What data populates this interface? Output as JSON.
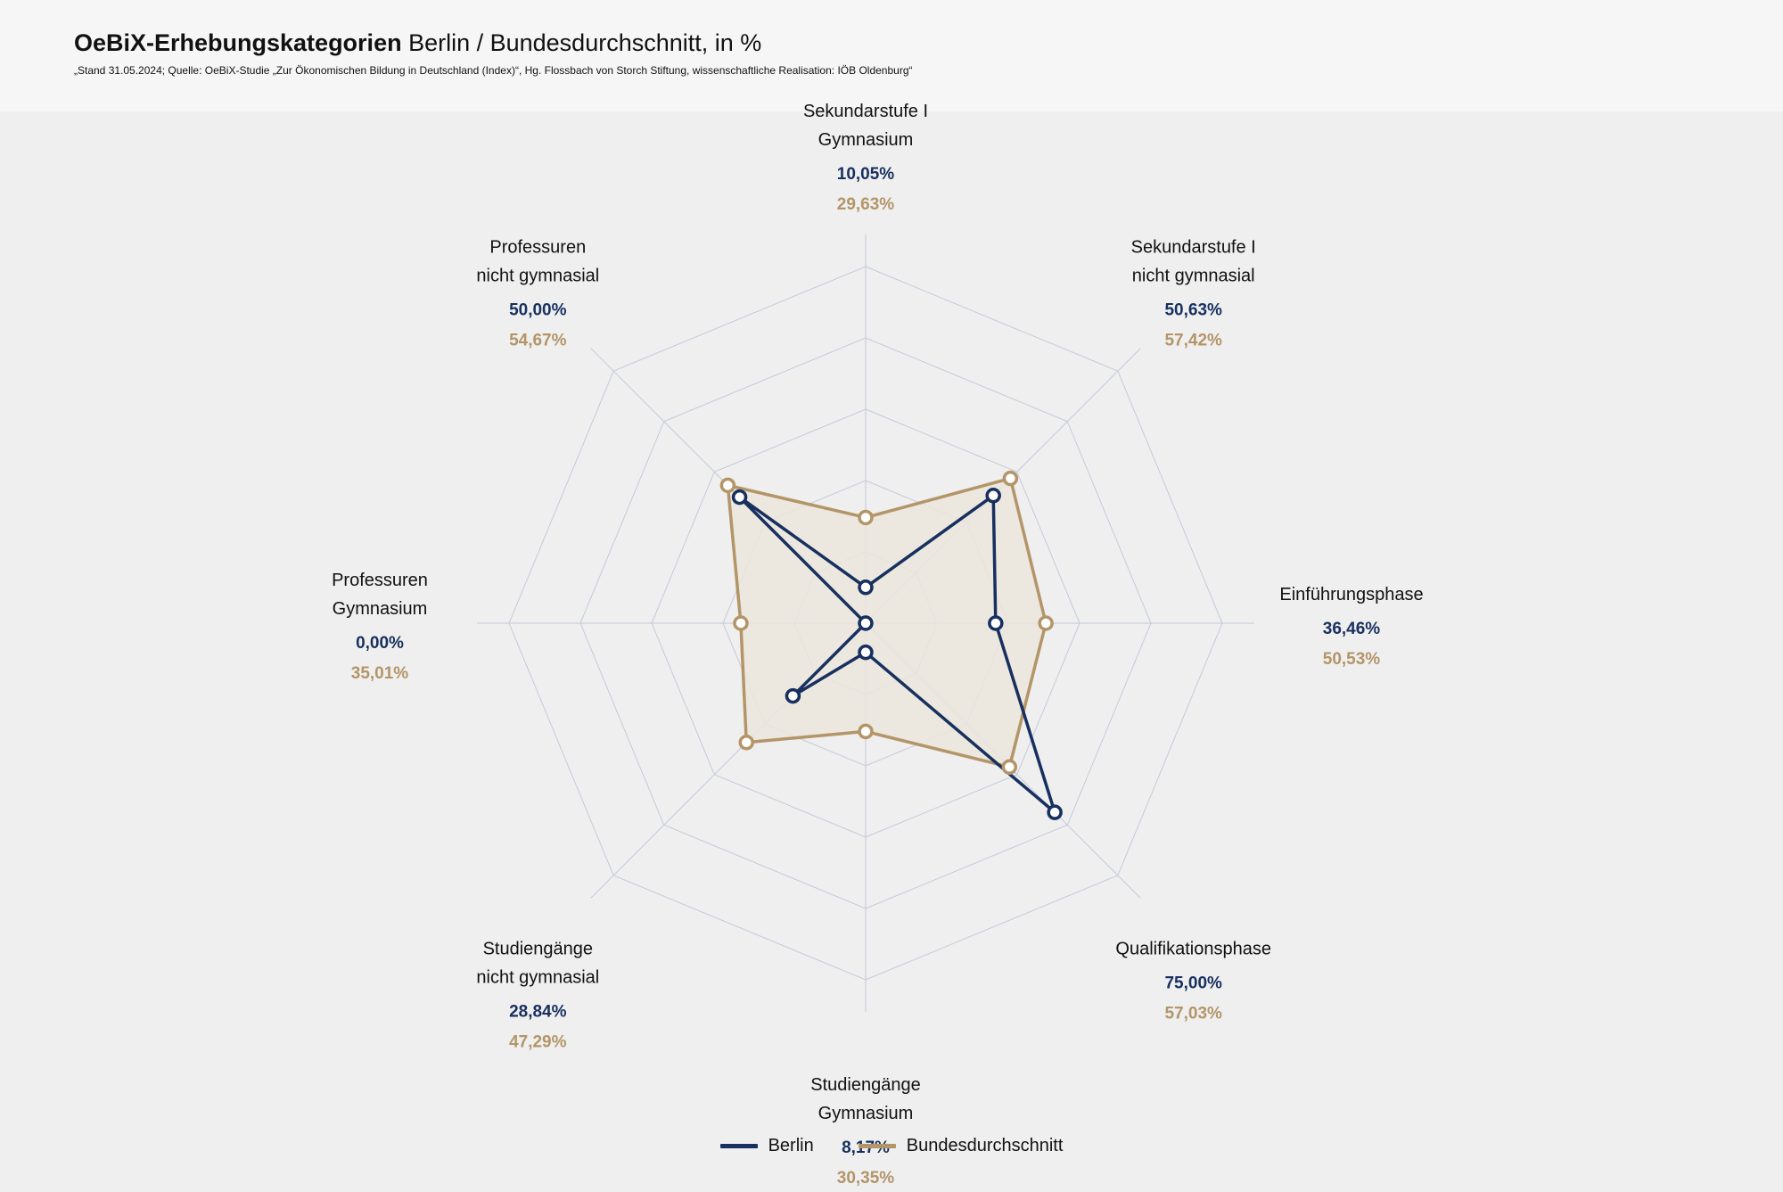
{
  "header": {
    "title_bold": "OeBiX-Erhebungskategorien",
    "title_rest": " Berlin / Bundesdurchschnitt, in %",
    "source": "„Stand 31.05.2024; Quelle: OeBiX-Studie „Zur Ökonomischen Bildung in Deutschland (Index)“, Hg. Flossbach von Storch Stiftung, wissenschaftliche Realisation: IÖB Oldenburg“"
  },
  "colors": {
    "berlin": "#17305f",
    "bund": "#b39568",
    "bund_fill": "#ebe6dd",
    "grid": "#c5cada",
    "point_fill": "#ffffff"
  },
  "chart_data": {
    "type": "radar",
    "rmax": 100,
    "rings": [
      20,
      40,
      60,
      80,
      100
    ],
    "axes": [
      {
        "label": [
          "Sekundarstufe I",
          "Gymnasium"
        ],
        "berlin_label": "10,05%",
        "bund_label": "29,63%"
      },
      {
        "label": [
          "Sekundarstufe I",
          "nicht gymnasial"
        ],
        "berlin_label": "50,63%",
        "bund_label": "57,42%"
      },
      {
        "label": [
          "Einführungsphase"
        ],
        "berlin_label": "36,46%",
        "bund_label": "50,53%"
      },
      {
        "label": [
          "Qualifikationsphase"
        ],
        "berlin_label": "75,00%",
        "bund_label": "57,03%"
      },
      {
        "label": [
          "Studiengänge",
          "Gymnasium"
        ],
        "berlin_label": "8,17%",
        "bund_label": "30,35%"
      },
      {
        "label": [
          "Studiengänge",
          "nicht gymnasial"
        ],
        "berlin_label": "28,84%",
        "bund_label": "47,29%"
      },
      {
        "label": [
          "Professuren",
          "Gymnasium"
        ],
        "berlin_label": "0,00%",
        "bund_label": "35,01%"
      },
      {
        "label": [
          "Professuren",
          "nicht gymnasial"
        ],
        "berlin_label": "50,00%",
        "bund_label": "54,67%"
      }
    ],
    "series": [
      {
        "name": "Berlin",
        "values": [
          10.05,
          50.63,
          36.46,
          75.0,
          8.17,
          28.84,
          0.0,
          50.0
        ]
      },
      {
        "name": "Bundesdurchschnitt",
        "values": [
          29.63,
          57.42,
          50.53,
          57.03,
          30.35,
          47.29,
          35.01,
          54.67
        ]
      }
    ]
  },
  "legend": [
    {
      "label": "Berlin",
      "color_key": "berlin"
    },
    {
      "label": "Bundesdurchschnitt",
      "color_key": "bund"
    }
  ]
}
